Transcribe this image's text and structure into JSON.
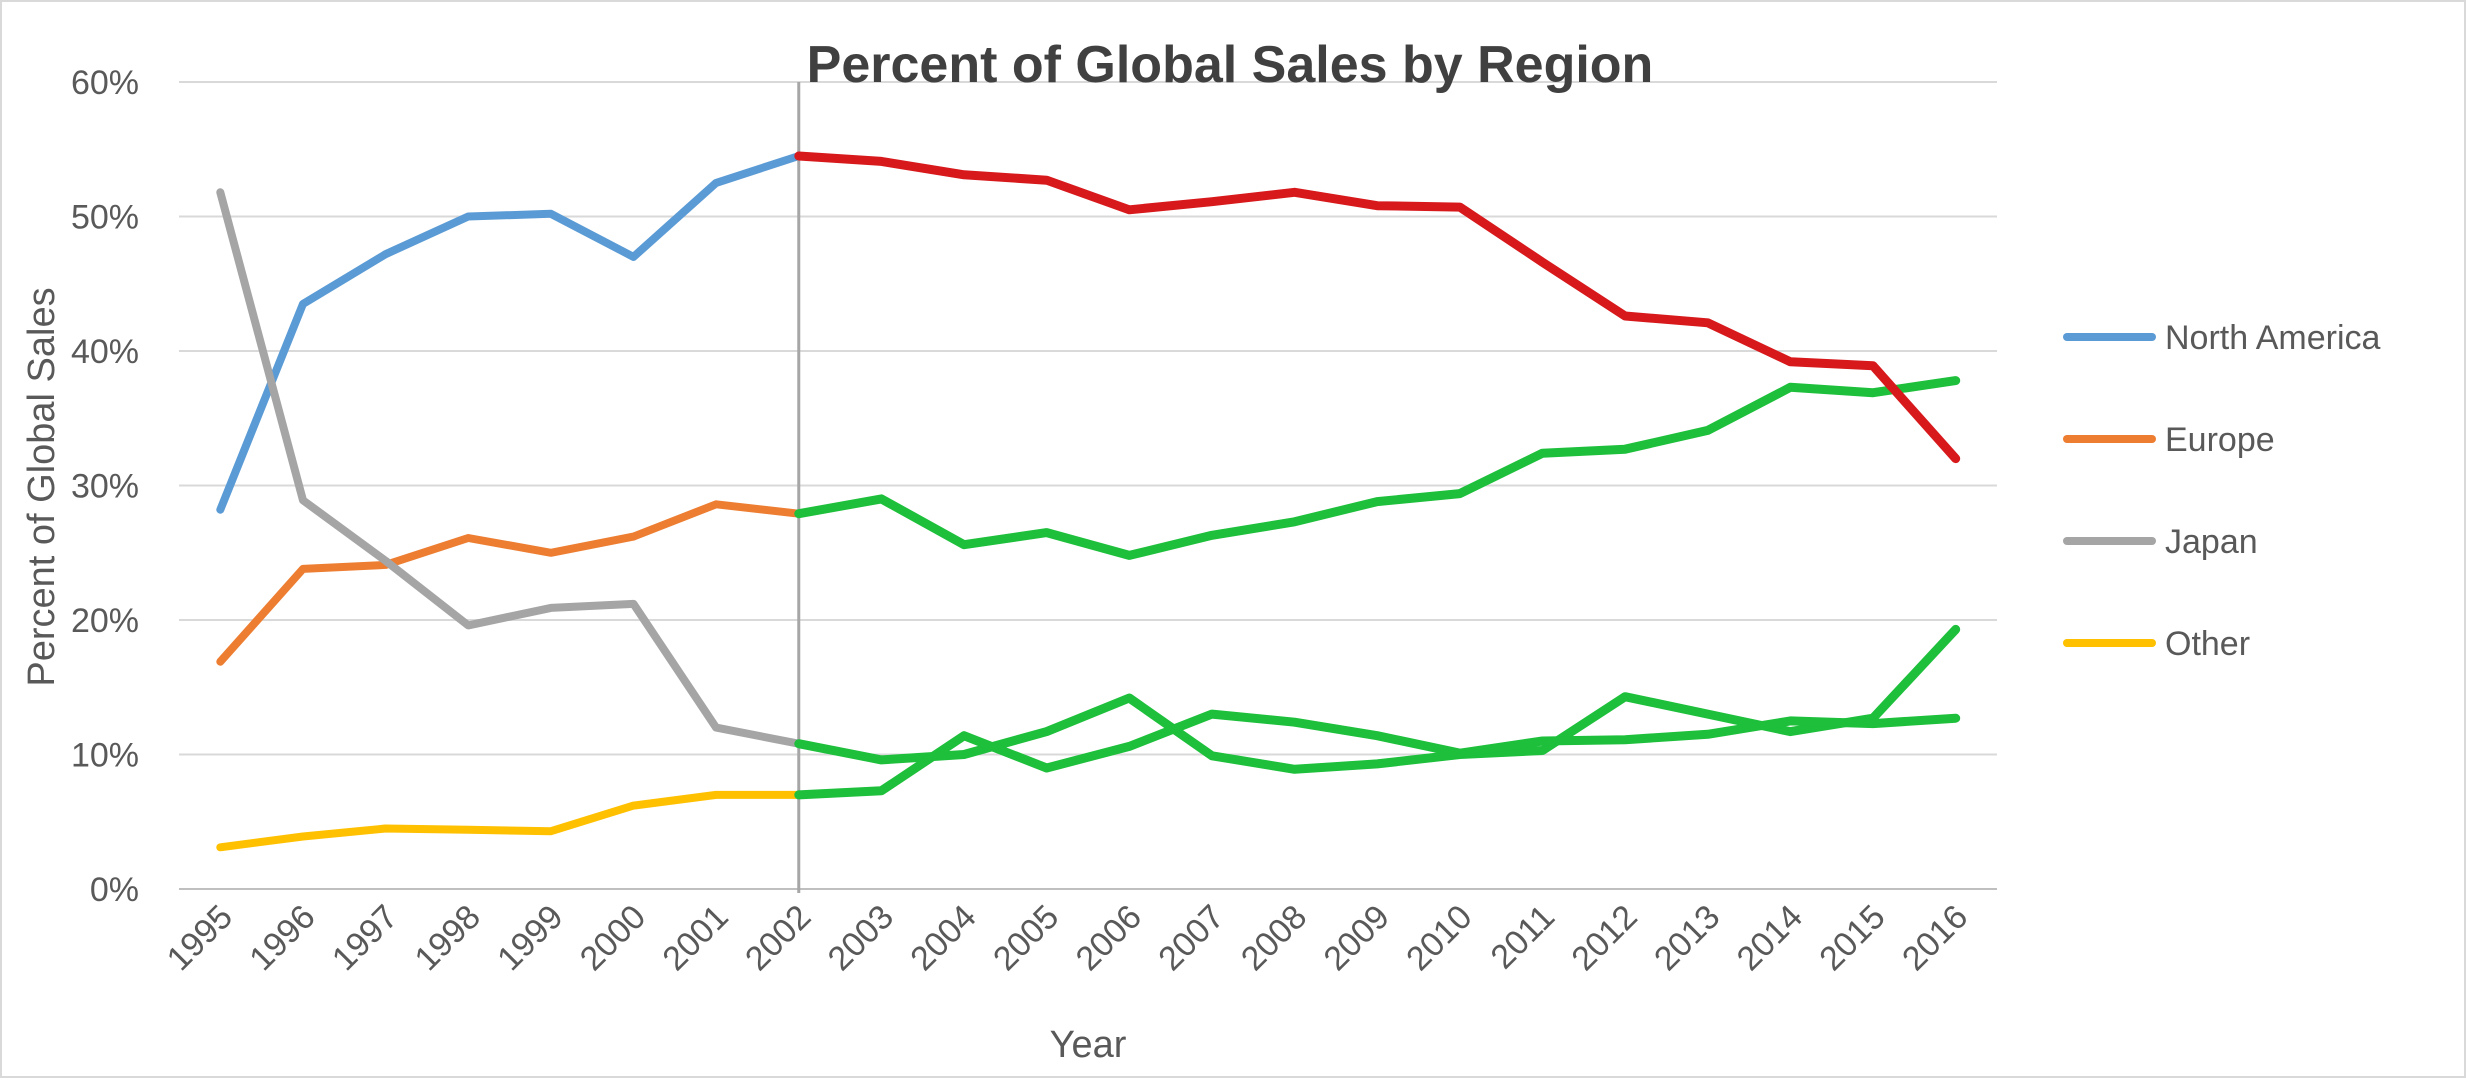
{
  "chart_data": {
    "type": "line",
    "title": "Percent of Global Sales by Region",
    "xlabel": "Year",
    "ylabel": "Percent of Global Sales",
    "ylim": [
      0,
      60
    ],
    "y_ticks": [
      "0%",
      "10%",
      "20%",
      "30%",
      "40%",
      "50%",
      "60%"
    ],
    "x": [
      "1995",
      "1996",
      "1997",
      "1998",
      "1999",
      "2000",
      "2001",
      "2002",
      "2003",
      "2004",
      "2005",
      "2006",
      "2007",
      "2008",
      "2009",
      "2010",
      "2011",
      "2012",
      "2013",
      "2014",
      "2015",
      "2016"
    ],
    "grid": true,
    "legend_position": "right",
    "reference_line_x": "2002",
    "highlight_start": "2002",
    "series": [
      {
        "name": "North America",
        "color": "#5b9bd5",
        "highlight_color": "#d7191c",
        "values": [
          28.2,
          43.5,
          47.2,
          50.0,
          50.2,
          47.0,
          52.5,
          54.5,
          54.1,
          53.1,
          52.7,
          50.5,
          51.1,
          51.8,
          50.8,
          50.7,
          46.6,
          42.6,
          42.1,
          39.2,
          38.9,
          32.0
        ]
      },
      {
        "name": "Europe",
        "color": "#ed7d31",
        "highlight_color": "#1dbf3b",
        "values": [
          16.9,
          23.8,
          24.1,
          26.1,
          25.0,
          26.2,
          28.6,
          27.9,
          29.0,
          25.6,
          26.5,
          24.8,
          26.3,
          27.3,
          28.8,
          29.4,
          32.4,
          32.7,
          34.1,
          37.3,
          36.9,
          37.8
        ]
      },
      {
        "name": "Japan",
        "color": "#a5a5a5",
        "highlight_color": "#1dbf3b",
        "values": [
          51.8,
          28.9,
          24.4,
          19.6,
          20.9,
          21.2,
          12.0,
          10.8,
          9.6,
          10.0,
          11.7,
          14.2,
          9.9,
          8.9,
          9.3,
          10.0,
          10.3,
          14.3,
          13.0,
          11.7,
          12.7,
          19.3
        ]
      },
      {
        "name": "Other",
        "color": "#ffc000",
        "highlight_color": "#1dbf3b",
        "values": [
          3.1,
          3.9,
          4.5,
          4.4,
          4.3,
          6.2,
          7.0,
          7.0,
          7.3,
          11.4,
          9.0,
          10.6,
          13.0,
          12.4,
          11.4,
          10.1,
          11.0,
          11.1,
          11.5,
          12.5,
          12.3,
          12.7
        ]
      }
    ]
  }
}
